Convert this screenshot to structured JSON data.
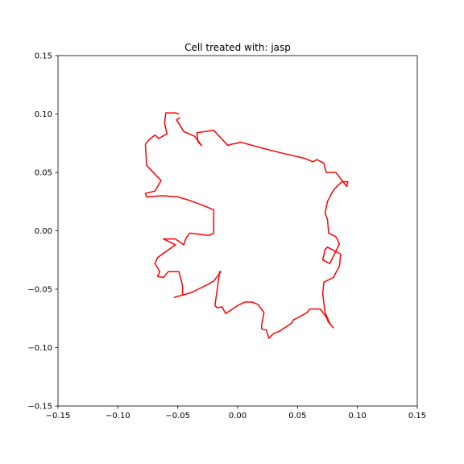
{
  "chart_data": {
    "type": "line",
    "title": "Cell treated with: jasp",
    "xlabel": "",
    "ylabel": "",
    "xlim": [
      -0.15,
      0.15
    ],
    "ylim": [
      -0.15,
      0.15
    ],
    "xticks": [
      -0.15,
      -0.1,
      -0.05,
      0.0,
      0.05,
      0.1,
      0.15
    ],
    "xtick_labels": [
      "−0.15",
      "−0.10",
      "−0.05",
      "0.00",
      "0.05",
      "0.10",
      "0.15"
    ],
    "yticks": [
      -0.15,
      -0.1,
      -0.05,
      0.0,
      0.05,
      0.1,
      0.15
    ],
    "ytick_labels": [
      "−0.15",
      "−0.10",
      "−0.05",
      "0.00",
      "0.05",
      "0.10",
      "0.15"
    ],
    "grid": false,
    "series": [
      {
        "color": "#ff0000",
        "x": [
          -0.049,
          -0.052,
          -0.06,
          -0.061,
          -0.059,
          -0.066,
          -0.069,
          -0.074,
          -0.077,
          -0.076,
          -0.064,
          -0.069,
          -0.077,
          -0.076,
          -0.063,
          -0.05,
          -0.04,
          -0.032,
          -0.02,
          -0.02,
          -0.024,
          -0.04,
          -0.043,
          -0.045,
          -0.052,
          -0.062,
          -0.052,
          -0.067,
          -0.069,
          -0.065,
          -0.067,
          -0.062,
          -0.058,
          -0.055,
          -0.049,
          -0.046,
          -0.046,
          -0.053,
          -0.039,
          -0.025,
          -0.02,
          -0.014,
          -0.015,
          -0.019,
          -0.017,
          -0.013,
          -0.01,
          0.0,
          0.006,
          0.012,
          0.017,
          0.022,
          0.02,
          0.02,
          0.024,
          0.026,
          0.03,
          0.035,
          0.045,
          0.047,
          0.051,
          0.058,
          0.06,
          0.069,
          0.074,
          0.078,
          0.08,
          0.078,
          0.075,
          0.076,
          0.073,
          0.071,
          0.072,
          0.08,
          0.085,
          0.086,
          0.075,
          0.073,
          0.071,
          0.077,
          0.085,
          0.082,
          0.076,
          0.075,
          0.073,
          0.075,
          0.079,
          0.081,
          0.087,
          0.092,
          0.091,
          0.082,
          0.074,
          0.072,
          0.066,
          0.063,
          0.056,
          0.035,
          0.02,
          0.002,
          0.0,
          -0.006,
          -0.008,
          -0.02,
          -0.034,
          -0.033,
          -0.03,
          -0.036,
          -0.045,
          -0.051,
          -0.048
        ],
        "y": [
          0.1,
          0.101,
          0.101,
          0.092,
          0.083,
          0.079,
          0.082,
          0.078,
          0.074,
          0.056,
          0.043,
          0.034,
          0.032,
          0.029,
          0.03,
          0.029,
          0.026,
          0.023,
          0.018,
          -0.002,
          -0.004,
          -0.002,
          -0.006,
          -0.012,
          -0.007,
          -0.007,
          -0.012,
          -0.023,
          -0.028,
          -0.035,
          -0.039,
          -0.04,
          -0.035,
          -0.035,
          -0.035,
          -0.047,
          -0.055,
          -0.057,
          -0.053,
          -0.046,
          -0.043,
          -0.035,
          -0.035,
          -0.064,
          -0.066,
          -0.065,
          -0.071,
          -0.064,
          -0.061,
          -0.061,
          -0.063,
          -0.07,
          -0.081,
          -0.084,
          -0.085,
          -0.092,
          -0.088,
          -0.086,
          -0.079,
          -0.076,
          -0.074,
          -0.07,
          -0.067,
          -0.067,
          -0.074,
          -0.081,
          -0.083,
          -0.081,
          -0.077,
          -0.077,
          -0.07,
          -0.054,
          -0.044,
          -0.04,
          -0.03,
          -0.02,
          -0.014,
          -0.016,
          -0.025,
          -0.028,
          -0.011,
          -0.005,
          -0.002,
          0.01,
          0.015,
          0.025,
          0.033,
          0.036,
          0.042,
          0.042,
          0.038,
          0.05,
          0.05,
          0.058,
          0.061,
          0.059,
          0.062,
          0.067,
          0.071,
          0.076,
          0.075,
          0.074,
          0.073,
          0.086,
          0.084,
          0.076,
          0.073,
          0.081,
          0.085,
          0.095,
          0.097
        ]
      }
    ]
  }
}
